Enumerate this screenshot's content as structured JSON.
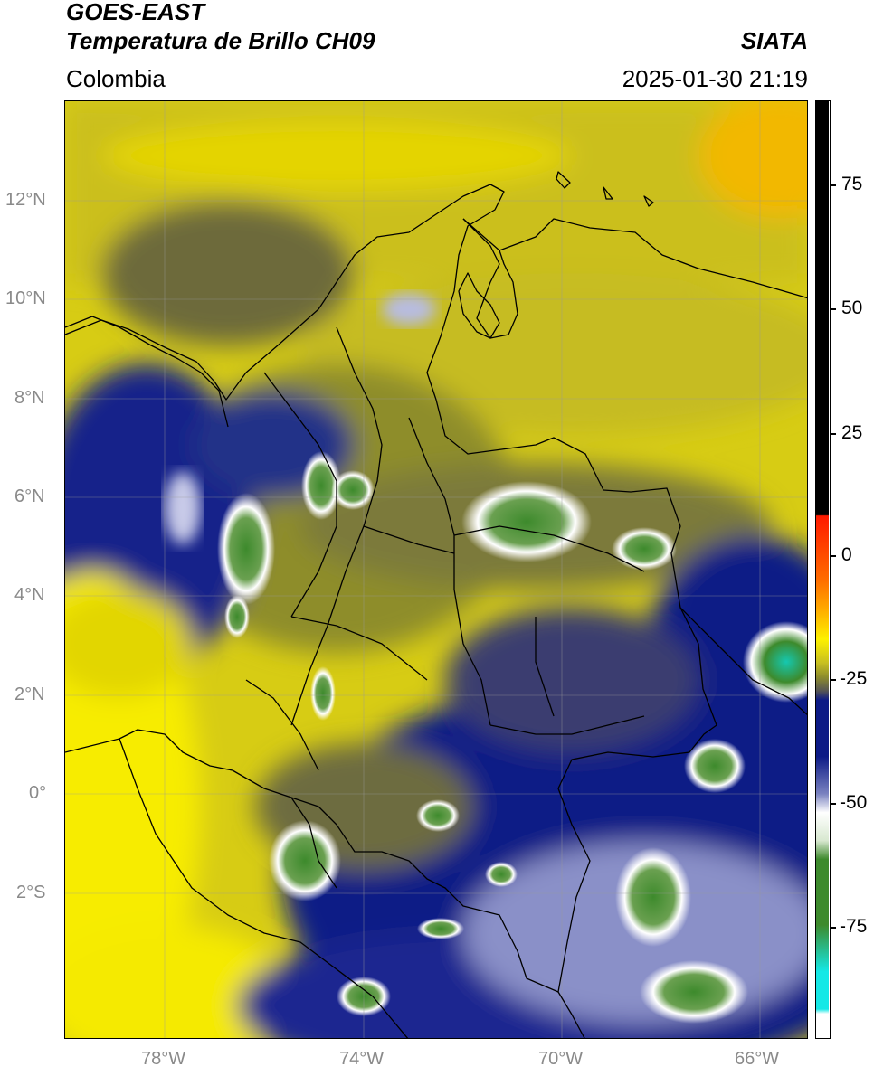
{
  "header": {
    "satellite": "GOES-EAST",
    "product": "Temperatura de Brillo CH09",
    "brand": "SIATA",
    "region": "Colombia",
    "datetime": "2025-01-30 21:19"
  },
  "map": {
    "lat_ticks": [
      "12°N",
      "10°N",
      "8°N",
      "6°N",
      "4°N",
      "2°N",
      "0°",
      "2°S"
    ],
    "lon_ticks": [
      "78°W",
      "74°W",
      "70°W",
      "66°W"
    ],
    "extent": {
      "lon_min": -80.0,
      "lon_max": -65.0,
      "lat_min": -5.0,
      "lat_max": 14.0
    }
  },
  "colorbar": {
    "ticks": [
      "75",
      "50",
      "25",
      "0",
      "-25",
      "-50",
      "-75"
    ],
    "colors": {
      "black": "#000000",
      "red": "#ff1a00",
      "orange": "#ffa500",
      "yellow": "#fdf100",
      "olive": "#8e8d2c",
      "navy": "#0c1a86",
      "white": "#ffffff",
      "green": "#3d8a2c",
      "cyan": "#15e8e6"
    }
  }
}
